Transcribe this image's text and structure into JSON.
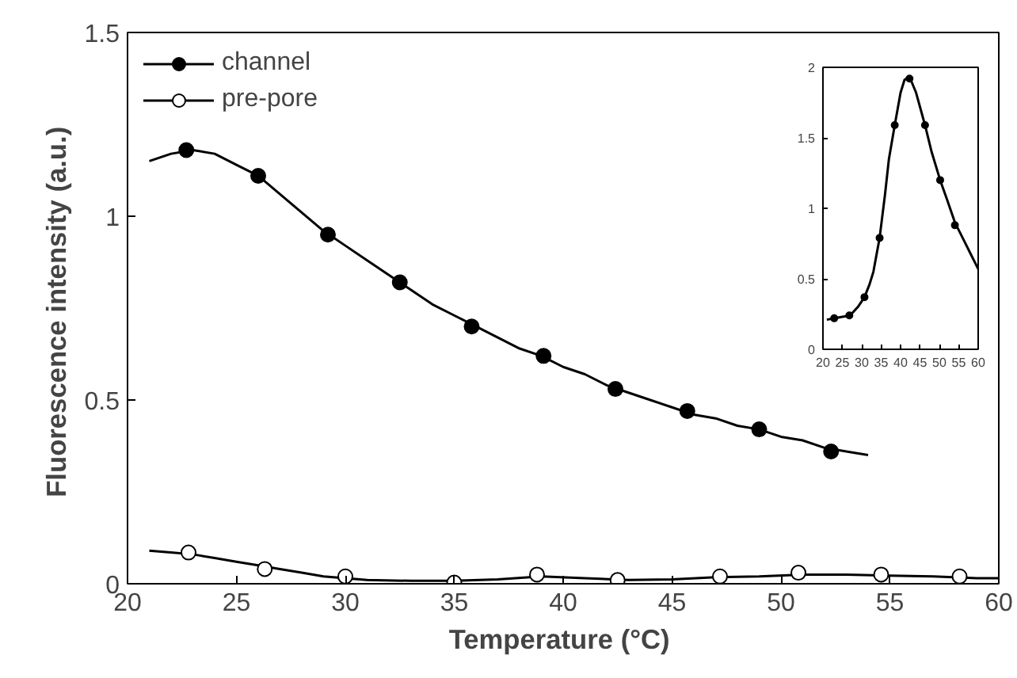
{
  "chart_data": [
    {
      "type": "line",
      "xlabel": "Temperature  (°C)",
      "ylabel": "Fluorescence intensity  (a.u.)",
      "xlim": [
        20,
        60
      ],
      "ylim": [
        0,
        1.5
      ],
      "xticks": [
        20,
        25,
        30,
        35,
        40,
        45,
        50,
        55,
        60
      ],
      "yticks": [
        0,
        0.5,
        1,
        1.5
      ],
      "legend": "top left",
      "grid": false,
      "series": [
        {
          "name": "channel",
          "color": "#000000",
          "marker": "none",
          "x": [
            21,
            22,
            23,
            24,
            25,
            26,
            27,
            28,
            29,
            30,
            31,
            32,
            33,
            34,
            35,
            36,
            37,
            38,
            39,
            40,
            41,
            42,
            43,
            44,
            45,
            46,
            47,
            48,
            49,
            50,
            51,
            52,
            53,
            54
          ],
          "values": [
            1.15,
            1.17,
            1.18,
            1.17,
            1.14,
            1.11,
            1.06,
            1.01,
            0.96,
            0.92,
            0.88,
            0.84,
            0.8,
            0.76,
            0.73,
            0.7,
            0.67,
            0.64,
            0.62,
            0.59,
            0.57,
            0.54,
            0.52,
            0.5,
            0.48,
            0.46,
            0.45,
            0.43,
            0.42,
            0.4,
            0.39,
            0.37,
            0.36,
            0.35
          ]
        },
        {
          "type": "scatter",
          "color": "#000000",
          "marker": "circle",
          "x": [
            22.7,
            26,
            29.2,
            32.5,
            35.8,
            39.1,
            42.4,
            45.7,
            49,
            52.3
          ],
          "values": [
            1.18,
            1.11,
            0.95,
            0.82,
            0.7,
            0.62,
            0.53,
            0.47,
            0.42,
            0.36
          ]
        },
        {
          "name": "pre-pore",
          "color": "#000000",
          "marker": "none",
          "x": [
            21,
            22,
            23,
            24,
            25,
            26,
            27,
            28,
            29,
            30,
            31,
            33,
            35,
            37,
            39,
            41,
            43,
            45,
            47,
            49,
            51,
            53,
            55,
            57,
            59,
            60
          ],
          "values": [
            0.09,
            0.085,
            0.08,
            0.07,
            0.06,
            0.05,
            0.04,
            0.03,
            0.02,
            0.015,
            0.01,
            0.008,
            0.008,
            0.012,
            0.02,
            0.015,
            0.01,
            0.012,
            0.018,
            0.02,
            0.025,
            0.025,
            0.022,
            0.02,
            0.015,
            0.015
          ]
        },
        {
          "type": "scatter",
          "color": "#ffffff",
          "marker": "circle",
          "x": [
            22.8,
            26.3,
            30,
            35,
            38.8,
            42.5,
            47.2,
            50.8,
            54.6,
            58.2
          ],
          "values": [
            0.085,
            0.04,
            0.02,
            0.003,
            0.025,
            0.01,
            0.02,
            0.03,
            0.025,
            0.02
          ]
        }
      ]
    },
    {
      "type": "line",
      "xlim": [
        20,
        60
      ],
      "ylim": [
        0,
        2
      ],
      "xticks": [
        20,
        25,
        30,
        35,
        40,
        45,
        50,
        55,
        60
      ],
      "yticks": [
        0,
        0.5,
        1,
        1.5,
        2
      ],
      "grid": false,
      "series": [
        {
          "color": "#000000",
          "marker": "none",
          "x": [
            21,
            23,
            25,
            27,
            29,
            30.7,
            32,
            33,
            34.6,
            36,
            37,
            38.5,
            40,
            41,
            42,
            42.5,
            44,
            46.3,
            48,
            50.2,
            52,
            54,
            56,
            58,
            60
          ],
          "values": [
            0.21,
            0.22,
            0.23,
            0.24,
            0.3,
            0.37,
            0.46,
            0.55,
            0.79,
            1.1,
            1.35,
            1.59,
            1.82,
            1.91,
            1.93,
            1.92,
            1.82,
            1.59,
            1.4,
            1.2,
            1.06,
            0.9,
            0.79,
            0.68,
            0.57
          ]
        },
        {
          "type": "scatter",
          "color": "#000000",
          "marker": "circle",
          "x": [
            22.9,
            26.8,
            30.7,
            34.6,
            38.5,
            42.3,
            46.3,
            50.2,
            54
          ],
          "values": [
            0.22,
            0.24,
            0.37,
            0.79,
            1.59,
            1.92,
            1.59,
            1.2,
            0.88
          ]
        }
      ]
    }
  ]
}
